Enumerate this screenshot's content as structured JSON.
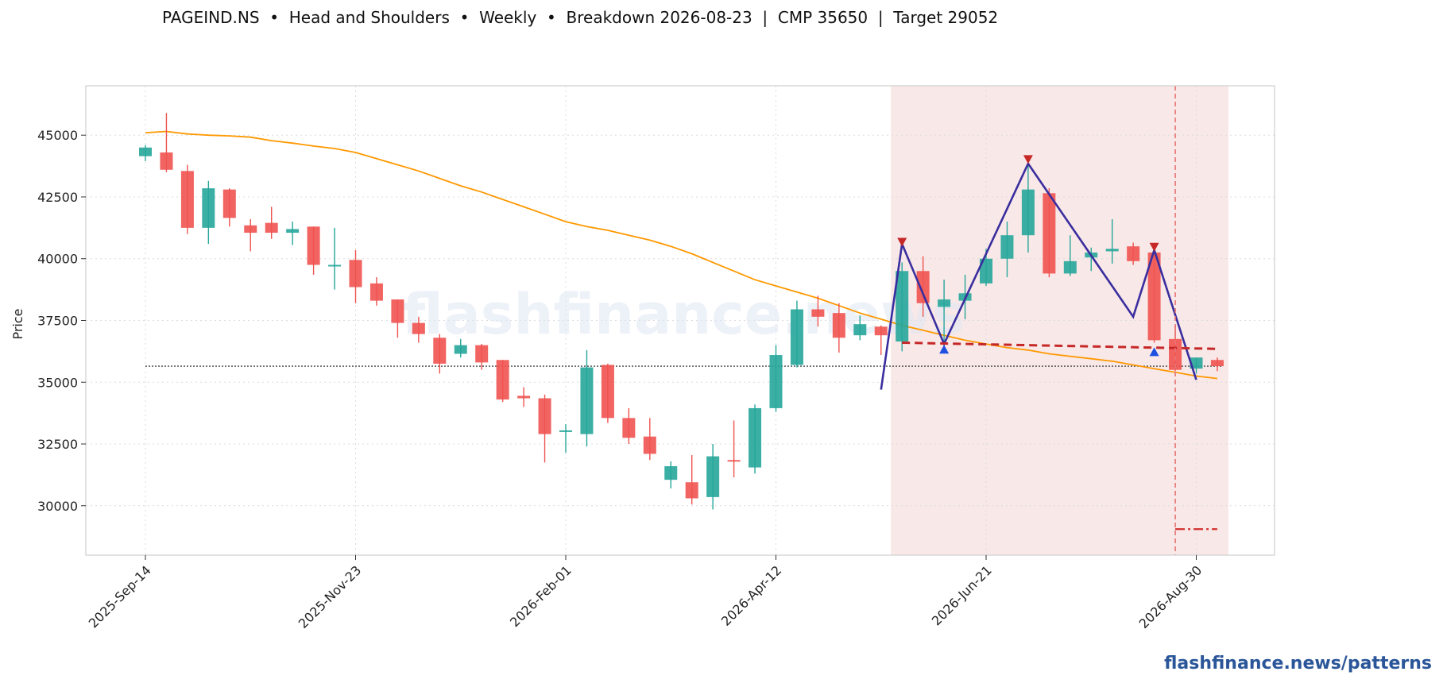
{
  "title": "PAGEIND.NS  •  Head and Shoulders  •  Weekly  •  Breakdown 2026-08-23  |  CMP 35650  |  Target 29052",
  "watermark": "flashfinance.news",
  "credit": "flashfinance.news/patterns",
  "chart_data": {
    "type": "candlestick",
    "ylabel": "Price",
    "ylim": [
      28000,
      47000
    ],
    "yticks": [
      30000,
      32500,
      35000,
      37500,
      40000,
      42500,
      45000
    ],
    "xtick_labels": [
      "2025-Sep-14",
      "2025-Nov-23",
      "2026-Feb-01",
      "2026-Apr-12",
      "2026-Jun-21",
      "2026-Aug-30"
    ],
    "grid": true,
    "colors": {
      "up": "#26a69a",
      "down": "#ef5350",
      "ma": "#ff9800",
      "pattern": "#3a2e9e",
      "neckline": "#c62828",
      "shade": "#f6dede",
      "breakdown_line": "#e57373",
      "target_line": "#d32f2f",
      "cmp_line": "#444444",
      "peak_marker": "#c62828",
      "trough_marker": "#1e50e0"
    },
    "candles": [
      {
        "date": "2025-Sep-14",
        "open": 44150,
        "high": 44600,
        "low": 43950,
        "close": 44500
      },
      {
        "date": "2025-Sep-21",
        "open": 44300,
        "high": 45900,
        "low": 43500,
        "close": 43600
      },
      {
        "date": "2025-Sep-28",
        "open": 43550,
        "high": 43800,
        "low": 41000,
        "close": 41250
      },
      {
        "date": "2025-Oct-05",
        "open": 41250,
        "high": 43150,
        "low": 40600,
        "close": 42850
      },
      {
        "date": "2025-Oct-12",
        "open": 42800,
        "high": 42850,
        "low": 41300,
        "close": 41650
      },
      {
        "date": "2025-Oct-19",
        "open": 41350,
        "high": 41600,
        "low": 40300,
        "close": 41050
      },
      {
        "date": "2025-Oct-26",
        "open": 41450,
        "high": 42100,
        "low": 40800,
        "close": 41050
      },
      {
        "date": "2025-Nov-02",
        "open": 41050,
        "high": 41500,
        "low": 40550,
        "close": 41200
      },
      {
        "date": "2025-Nov-09",
        "open": 41300,
        "high": 41300,
        "low": 39350,
        "close": 39750
      },
      {
        "date": "2025-Nov-16",
        "open": 39700,
        "high": 41250,
        "low": 38750,
        "close": 39750
      },
      {
        "date": "2025-Nov-23",
        "open": 39950,
        "high": 40350,
        "low": 38200,
        "close": 38850
      },
      {
        "date": "2025-Nov-30",
        "open": 39000,
        "high": 39250,
        "low": 38100,
        "close": 38300
      },
      {
        "date": "2025-Dec-07",
        "open": 38350,
        "high": 38350,
        "low": 36800,
        "close": 37400
      },
      {
        "date": "2025-Dec-14",
        "open": 37400,
        "high": 37650,
        "low": 36600,
        "close": 36950
      },
      {
        "date": "2025-Dec-21",
        "open": 36800,
        "high": 36950,
        "low": 35350,
        "close": 35750
      },
      {
        "date": "2025-Dec-28",
        "open": 36150,
        "high": 36750,
        "low": 36000,
        "close": 36500
      },
      {
        "date": "2026-Jan-04",
        "open": 36500,
        "high": 36550,
        "low": 35500,
        "close": 35800
      },
      {
        "date": "2026-Jan-11",
        "open": 35900,
        "high": 35900,
        "low": 34200,
        "close": 34300
      },
      {
        "date": "2026-Jan-18",
        "open": 34450,
        "high": 34800,
        "low": 34000,
        "close": 34350
      },
      {
        "date": "2026-Jan-25",
        "open": 34350,
        "high": 34500,
        "low": 31750,
        "close": 32900
      },
      {
        "date": "2026-Feb-01",
        "open": 33000,
        "high": 33300,
        "low": 32150,
        "close": 33050
      },
      {
        "date": "2026-Feb-08",
        "open": 32900,
        "high": 36300,
        "low": 32400,
        "close": 35600
      },
      {
        "date": "2026-Feb-15",
        "open": 35700,
        "high": 35750,
        "low": 33350,
        "close": 33550
      },
      {
        "date": "2026-Feb-22",
        "open": 33550,
        "high": 33950,
        "low": 32500,
        "close": 32750
      },
      {
        "date": "2026-Mar-01",
        "open": 32800,
        "high": 33550,
        "low": 31850,
        "close": 32100
      },
      {
        "date": "2026-Mar-08",
        "open": 31050,
        "high": 31800,
        "low": 30700,
        "close": 31600
      },
      {
        "date": "2026-Mar-15",
        "open": 30950,
        "high": 32050,
        "low": 30050,
        "close": 30300
      },
      {
        "date": "2026-Mar-22",
        "open": 30350,
        "high": 32500,
        "low": 29850,
        "close": 32000
      },
      {
        "date": "2026-Mar-29",
        "open": 31850,
        "high": 33450,
        "low": 31150,
        "close": 31800
      },
      {
        "date": "2026-Apr-05",
        "open": 31550,
        "high": 34100,
        "low": 31300,
        "close": 33950
      },
      {
        "date": "2026-Apr-12",
        "open": 33950,
        "high": 36500,
        "low": 33800,
        "close": 36100
      },
      {
        "date": "2026-Apr-19",
        "open": 35700,
        "high": 38300,
        "low": 35600,
        "close": 37950
      },
      {
        "date": "2026-Apr-26",
        "open": 37950,
        "high": 38500,
        "low": 37250,
        "close": 37650
      },
      {
        "date": "2026-May-03",
        "open": 37800,
        "high": 38200,
        "low": 36200,
        "close": 36800
      },
      {
        "date": "2026-May-10",
        "open": 36900,
        "high": 37700,
        "low": 36700,
        "close": 37350
      },
      {
        "date": "2026-May-17",
        "open": 37250,
        "high": 37300,
        "low": 36100,
        "close": 36900
      },
      {
        "date": "2026-May-24",
        "open": 36650,
        "high": 39850,
        "low": 36250,
        "close": 39500
      },
      {
        "date": "2026-May-31",
        "open": 39500,
        "high": 40100,
        "low": 37650,
        "close": 38200
      },
      {
        "date": "2026-Jun-07",
        "open": 38050,
        "high": 39150,
        "low": 36250,
        "close": 38350
      },
      {
        "date": "2026-Jun-14",
        "open": 38300,
        "high": 39350,
        "low": 37550,
        "close": 38600
      },
      {
        "date": "2026-Jun-21",
        "open": 39000,
        "high": 40400,
        "low": 38900,
        "close": 40000
      },
      {
        "date": "2026-Jun-28",
        "open": 40000,
        "high": 41500,
        "low": 39250,
        "close": 40950
      },
      {
        "date": "2026-Jul-05",
        "open": 40950,
        "high": 44000,
        "low": 40250,
        "close": 42800
      },
      {
        "date": "2026-Jul-12",
        "open": 42650,
        "high": 42850,
        "low": 39250,
        "close": 39400
      },
      {
        "date": "2026-Jul-19",
        "open": 39400,
        "high": 40950,
        "low": 39300,
        "close": 39900
      },
      {
        "date": "2026-Jul-26",
        "open": 40050,
        "high": 40450,
        "low": 39500,
        "close": 40250
      },
      {
        "date": "2026-Aug-02",
        "open": 40300,
        "high": 41600,
        "low": 39800,
        "close": 40400
      },
      {
        "date": "2026-Aug-09",
        "open": 40500,
        "high": 40650,
        "low": 39750,
        "close": 39900
      },
      {
        "date": "2026-Aug-16",
        "open": 40250,
        "high": 40300,
        "low": 36600,
        "close": 36700
      },
      {
        "date": "2026-Aug-23",
        "open": 36750,
        "high": 37300,
        "low": 35450,
        "close": 35500
      },
      {
        "date": "2026-Aug-30",
        "open": 35550,
        "high": 36000,
        "low": 35350,
        "close": 36000
      },
      {
        "date": "2026-Sep-06",
        "open": 35900,
        "high": 36000,
        "low": 35450,
        "close": 35650
      }
    ],
    "moving_average": [
      45100,
      45150,
      45050,
      45000,
      44970,
      44920,
      44780,
      44680,
      44560,
      44460,
      44300,
      44050,
      43800,
      43550,
      43250,
      42950,
      42700,
      42400,
      42100,
      41800,
      41500,
      41300,
      41150,
      40950,
      40750,
      40500,
      40200,
      39850,
      39500,
      39150,
      38900,
      38650,
      38400,
      38100,
      37800,
      37550,
      37300,
      37100,
      36900,
      36700,
      36550,
      36400,
      36300,
      36150,
      36050,
      35950,
      35850,
      35700,
      35550,
      35400,
      35250,
      35150
    ],
    "pattern_line": [
      {
        "date": "2026-May-17",
        "price": 34700
      },
      {
        "date": "2026-May-24",
        "price": 40600
      },
      {
        "date": "2026-Jun-07",
        "price": 36550
      },
      {
        "date": "2026-Jul-05",
        "price": 43850
      },
      {
        "date": "2026-Aug-09",
        "price": 37650
      },
      {
        "date": "2026-Aug-16",
        "price": 40350
      },
      {
        "date": "2026-Aug-30",
        "price": 35100
      }
    ],
    "peaks": [
      {
        "date": "2026-May-24",
        "price": 40650
      },
      {
        "date": "2026-Jul-05",
        "price": 44000
      },
      {
        "date": "2026-Aug-16",
        "price": 40450
      }
    ],
    "troughs": [
      {
        "date": "2026-Jun-07",
        "price": 36350
      },
      {
        "date": "2026-Aug-16",
        "price": 36250
      }
    ],
    "neckline": {
      "start": {
        "date": "2026-May-24",
        "price": 36600
      },
      "end": {
        "date": "2026-Sep-06",
        "price": 36350
      }
    },
    "shaded_region": {
      "start": "2026-May-24",
      "end": "2026-Sep-06"
    },
    "breakdown_date": "2026-Aug-23",
    "cmp": 35650,
    "target": 29052,
    "target_line": {
      "start": "2026-Aug-23",
      "end": "2026-Sep-06",
      "price": 29052
    }
  }
}
